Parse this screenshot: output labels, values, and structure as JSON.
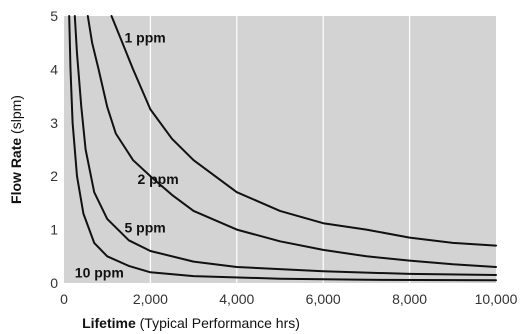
{
  "chart_data": {
    "type": "line",
    "xlabel": {
      "bold": "Lifetime",
      "rest": " (Typical Performance hrs)"
    },
    "ylabel": {
      "bold": "Flow Rate",
      "rest": " (slpm)"
    },
    "xlim": [
      0,
      10000
    ],
    "ylim": [
      0,
      5
    ],
    "x_ticks": [
      0,
      2000,
      4000,
      6000,
      8000,
      10000
    ],
    "x_tick_labels": [
      "0",
      "2,000",
      "4,000",
      "6,000",
      "8,000",
      "10,000"
    ],
    "y_ticks": [
      0,
      1,
      2,
      3,
      4,
      5
    ],
    "y_tick_labels": [
      "0",
      "1",
      "2",
      "3",
      "4",
      "5"
    ],
    "grid": true,
    "plot_background": "#d3d3d3",
    "grid_color": "#ffffff",
    "line_color": "#111111",
    "series": [
      {
        "name": "1 ppm",
        "points": [
          [
            1100,
            5.0
          ],
          [
            1300,
            4.6
          ],
          [
            1600,
            4.0
          ],
          [
            2000,
            3.25
          ],
          [
            2500,
            2.7
          ],
          [
            3000,
            2.3
          ],
          [
            3500,
            2.0
          ],
          [
            4000,
            1.7
          ],
          [
            5000,
            1.35
          ],
          [
            6000,
            1.12
          ],
          [
            7000,
            1.0
          ],
          [
            8000,
            0.85
          ],
          [
            9000,
            0.75
          ],
          [
            10000,
            0.7
          ]
        ]
      },
      {
        "name": "2 ppm",
        "points": [
          [
            550,
            5.0
          ],
          [
            650,
            4.5
          ],
          [
            800,
            4.0
          ],
          [
            1000,
            3.3
          ],
          [
            1200,
            2.8
          ],
          [
            1600,
            2.3
          ],
          [
            2000,
            2.0
          ],
          [
            2500,
            1.65
          ],
          [
            3000,
            1.35
          ],
          [
            4000,
            1.0
          ],
          [
            5000,
            0.78
          ],
          [
            6000,
            0.62
          ],
          [
            7000,
            0.5
          ],
          [
            8000,
            0.42
          ],
          [
            9000,
            0.35
          ],
          [
            10000,
            0.3
          ]
        ]
      },
      {
        "name": "5 ppm",
        "points": [
          [
            250,
            5.0
          ],
          [
            300,
            4.3
          ],
          [
            400,
            3.3
          ],
          [
            500,
            2.5
          ],
          [
            700,
            1.7
          ],
          [
            1000,
            1.2
          ],
          [
            1500,
            0.8
          ],
          [
            2000,
            0.6
          ],
          [
            3000,
            0.4
          ],
          [
            4000,
            0.3
          ],
          [
            6000,
            0.22
          ],
          [
            8000,
            0.17
          ],
          [
            10000,
            0.15
          ]
        ]
      },
      {
        "name": "10 ppm",
        "points": [
          [
            120,
            5.0
          ],
          [
            150,
            4.0
          ],
          [
            200,
            3.0
          ],
          [
            300,
            2.0
          ],
          [
            450,
            1.3
          ],
          [
            700,
            0.75
          ],
          [
            1000,
            0.5
          ],
          [
            1500,
            0.32
          ],
          [
            2000,
            0.2
          ],
          [
            3000,
            0.13
          ],
          [
            5000,
            0.08
          ],
          [
            7000,
            0.06
          ],
          [
            10000,
            0.05
          ]
        ]
      }
    ],
    "curve_labels": [
      {
        "text": "1 ppm",
        "x": 1400,
        "y": 4.5
      },
      {
        "text": "2 ppm",
        "x": 1700,
        "y": 1.85
      },
      {
        "text": "5 ppm",
        "x": 1400,
        "y": 0.95
      },
      {
        "text": "10 ppm",
        "x": 250,
        "y": 0.1
      }
    ]
  }
}
